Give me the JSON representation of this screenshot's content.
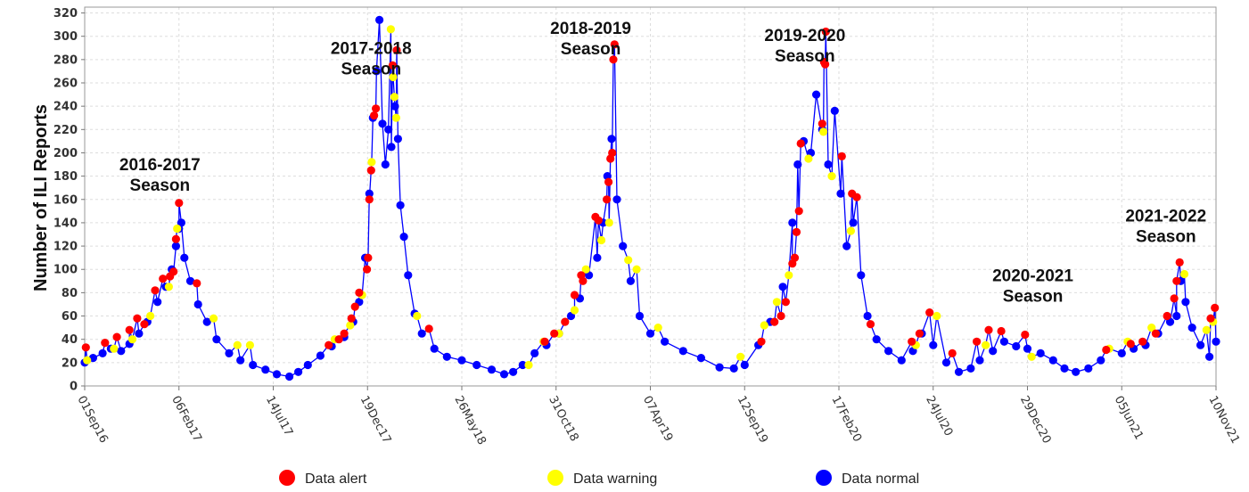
{
  "chart_data": {
    "type": "scatter",
    "title": "",
    "xlabel": "",
    "ylabel": "Number of ILI Reports",
    "ylim": [
      0,
      325
    ],
    "yticks": [
      0,
      20,
      40,
      60,
      80,
      100,
      120,
      140,
      160,
      180,
      200,
      220,
      240,
      260,
      280,
      300,
      320
    ],
    "xlim": [
      "2016-09-01",
      "2021-11-10"
    ],
    "xtick_labels": [
      "01Sep16",
      "06Feb17",
      "14Jul17",
      "19Dec17",
      "26May18",
      "31Oct18",
      "07Apr19",
      "12Sep19",
      "17Feb20",
      "24Jul20",
      "29Dec20",
      "05Jun21",
      "10Nov21"
    ],
    "xtick_dates": [
      "2016-09-01",
      "2017-02-06",
      "2017-07-14",
      "2017-12-19",
      "2018-05-26",
      "2018-10-31",
      "2019-04-07",
      "2019-09-12",
      "2020-02-17",
      "2020-07-24",
      "2020-12-29",
      "2021-06-05",
      "2021-11-10"
    ],
    "grid": true,
    "legend_position": "bottom",
    "legend": [
      {
        "label": "Data alert",
        "color": "#ff0000"
      },
      {
        "label": "Data warning",
        "color": "#ffff00"
      },
      {
        "label": "Data normal",
        "color": "#0000ff"
      }
    ],
    "annotations": [
      {
        "lines": [
          "2016-2017",
          "Season"
        ],
        "date": "2017-01-05",
        "y": 185
      },
      {
        "lines": [
          "2017-2018",
          "Season"
        ],
        "date": "2017-12-25",
        "y": 285
      },
      {
        "lines": [
          "2018-2019",
          "Season"
        ],
        "date": "2018-12-28",
        "y": 302
      },
      {
        "lines": [
          "2019-2020",
          "Season"
        ],
        "date": "2019-12-22",
        "y": 296
      },
      {
        "lines": [
          "2020-2021",
          "Season"
        ],
        "date": "2021-01-07",
        "y": 90
      },
      {
        "lines": [
          "2021-2022",
          "Season"
        ],
        "date": "2021-08-18",
        "y": 141
      }
    ],
    "series": [
      {
        "name": "Data normal",
        "color": "#0000ff",
        "points": [
          [
            "2016-09-01",
            20
          ],
          [
            "2016-09-15",
            24
          ],
          [
            "2016-10-01",
            28
          ],
          [
            "2016-10-15",
            32
          ],
          [
            "2016-11-01",
            30
          ],
          [
            "2016-11-15",
            36
          ],
          [
            "2016-12-01",
            45
          ],
          [
            "2016-12-15",
            55
          ],
          [
            "2017-01-01",
            72
          ],
          [
            "2017-01-15",
            85
          ],
          [
            "2017-01-25",
            100
          ],
          [
            "2017-02-01",
            120
          ],
          [
            "2017-02-06",
            135
          ],
          [
            "2017-02-10",
            140
          ],
          [
            "2017-02-15",
            110
          ],
          [
            "2017-02-25",
            90
          ],
          [
            "2017-03-10",
            70
          ],
          [
            "2017-03-25",
            55
          ],
          [
            "2017-04-10",
            40
          ],
          [
            "2017-05-01",
            28
          ],
          [
            "2017-05-20",
            22
          ],
          [
            "2017-06-10",
            18
          ],
          [
            "2017-07-01",
            14
          ],
          [
            "2017-07-20",
            10
          ],
          [
            "2017-08-10",
            8
          ],
          [
            "2017-08-25",
            12
          ],
          [
            "2017-09-10",
            18
          ],
          [
            "2017-10-01",
            26
          ],
          [
            "2017-10-20",
            34
          ],
          [
            "2017-11-10",
            42
          ],
          [
            "2017-11-25",
            55
          ],
          [
            "2017-12-05",
            72
          ],
          [
            "2017-12-15",
            110
          ],
          [
            "2017-12-22",
            165
          ],
          [
            "2017-12-28",
            230
          ],
          [
            "2018-01-03",
            270
          ],
          [
            "2018-01-08",
            314
          ],
          [
            "2018-01-13",
            225
          ],
          [
            "2018-01-18",
            190
          ],
          [
            "2018-01-23",
            220
          ],
          [
            "2018-01-28",
            205
          ],
          [
            "2018-02-03",
            240
          ],
          [
            "2018-02-08",
            212
          ],
          [
            "2018-02-12",
            155
          ],
          [
            "2018-02-18",
            128
          ],
          [
            "2018-02-25",
            95
          ],
          [
            "2018-03-08",
            62
          ],
          [
            "2018-03-20",
            45
          ],
          [
            "2018-04-10",
            32
          ],
          [
            "2018-05-01",
            25
          ],
          [
            "2018-05-26",
            22
          ],
          [
            "2018-06-20",
            18
          ],
          [
            "2018-07-15",
            14
          ],
          [
            "2018-08-05",
            10
          ],
          [
            "2018-08-20",
            12
          ],
          [
            "2018-09-05",
            18
          ],
          [
            "2018-09-25",
            28
          ],
          [
            "2018-10-15",
            35
          ],
          [
            "2018-11-05",
            45
          ],
          [
            "2018-11-25",
            60
          ],
          [
            "2018-12-10",
            75
          ],
          [
            "2018-12-25",
            95
          ],
          [
            "2019-01-08",
            110
          ],
          [
            "2019-01-18",
            140
          ],
          [
            "2019-01-25",
            180
          ],
          [
            "2019-02-01",
            212
          ],
          [
            "2019-02-10",
            160
          ],
          [
            "2019-02-20",
            120
          ],
          [
            "2019-03-05",
            90
          ],
          [
            "2019-03-20",
            60
          ],
          [
            "2019-04-07",
            45
          ],
          [
            "2019-05-01",
            38
          ],
          [
            "2019-06-01",
            30
          ],
          [
            "2019-07-01",
            24
          ],
          [
            "2019-08-01",
            16
          ],
          [
            "2019-08-25",
            15
          ],
          [
            "2019-09-12",
            18
          ],
          [
            "2019-10-05",
            35
          ],
          [
            "2019-10-25",
            55
          ],
          [
            "2019-11-15",
            85
          ],
          [
            "2019-12-01",
            140
          ],
          [
            "2019-12-10",
            190
          ],
          [
            "2019-12-20",
            210
          ],
          [
            "2020-01-01",
            200
          ],
          [
            "2020-01-10",
            250
          ],
          [
            "2020-01-20",
            220
          ],
          [
            "2020-01-30",
            190
          ],
          [
            "2020-02-10",
            236
          ],
          [
            "2020-02-20",
            165
          ],
          [
            "2020-03-01",
            120
          ],
          [
            "2020-03-12",
            140
          ],
          [
            "2020-03-25",
            95
          ],
          [
            "2020-04-05",
            60
          ],
          [
            "2020-04-20",
            40
          ],
          [
            "2020-05-10",
            30
          ],
          [
            "2020-06-01",
            22
          ],
          [
            "2020-06-20",
            30
          ],
          [
            "2020-07-05",
            45
          ],
          [
            "2020-07-24",
            35
          ],
          [
            "2020-08-15",
            20
          ],
          [
            "2020-09-05",
            12
          ],
          [
            "2020-09-25",
            15
          ],
          [
            "2020-10-10",
            22
          ],
          [
            "2020-11-01",
            30
          ],
          [
            "2020-11-20",
            38
          ],
          [
            "2020-12-10",
            34
          ],
          [
            "2020-12-29",
            32
          ],
          [
            "2021-01-20",
            28
          ],
          [
            "2021-02-10",
            22
          ],
          [
            "2021-03-01",
            15
          ],
          [
            "2021-03-20",
            12
          ],
          [
            "2021-04-10",
            15
          ],
          [
            "2021-05-01",
            22
          ],
          [
            "2021-06-05",
            28
          ],
          [
            "2021-06-25",
            32
          ],
          [
            "2021-07-15",
            35
          ],
          [
            "2021-08-05",
            45
          ],
          [
            "2021-08-25",
            55
          ],
          [
            "2021-09-05",
            60
          ],
          [
            "2021-09-12",
            90
          ],
          [
            "2021-09-20",
            72
          ],
          [
            "2021-10-01",
            50
          ],
          [
            "2021-10-15",
            35
          ],
          [
            "2021-10-30",
            25
          ],
          [
            "2021-11-10",
            38
          ]
        ]
      },
      {
        "name": "Data warning",
        "color": "#ffff00",
        "points": [
          [
            "2016-09-05",
            22
          ],
          [
            "2016-10-20",
            32
          ],
          [
            "2016-11-20",
            40
          ],
          [
            "2016-12-20",
            60
          ],
          [
            "2017-01-20",
            85
          ],
          [
            "2017-02-03",
            135
          ],
          [
            "2017-04-05",
            58
          ],
          [
            "2017-05-15",
            35
          ],
          [
            "2017-06-05",
            35
          ],
          [
            "2017-10-25",
            40
          ],
          [
            "2017-11-20",
            52
          ],
          [
            "2017-12-10",
            78
          ],
          [
            "2017-12-26",
            192
          ],
          [
            "2018-01-27",
            306
          ],
          [
            "2018-01-31",
            265
          ],
          [
            "2018-02-02",
            248
          ],
          [
            "2018-02-05",
            230
          ],
          [
            "2018-03-12",
            60
          ],
          [
            "2018-09-15",
            18
          ],
          [
            "2018-10-10",
            38
          ],
          [
            "2018-11-05",
            45
          ],
          [
            "2018-12-01",
            65
          ],
          [
            "2018-12-20",
            100
          ],
          [
            "2019-01-15",
            125
          ],
          [
            "2019-01-28",
            140
          ],
          [
            "2019-03-01",
            108
          ],
          [
            "2019-03-15",
            100
          ],
          [
            "2019-04-20",
            50
          ],
          [
            "2019-09-05",
            25
          ],
          [
            "2019-10-15",
            52
          ],
          [
            "2019-11-05",
            72
          ],
          [
            "2019-11-25",
            95
          ],
          [
            "2019-12-28",
            195
          ],
          [
            "2020-01-22",
            218
          ],
          [
            "2020-02-05",
            180
          ],
          [
            "2020-03-08",
            133
          ],
          [
            "2020-06-25",
            35
          ],
          [
            "2020-07-30",
            60
          ],
          [
            "2020-10-20",
            35
          ],
          [
            "2021-01-05",
            25
          ],
          [
            "2021-05-15",
            32
          ],
          [
            "2021-06-15",
            38
          ],
          [
            "2021-07-25",
            50
          ],
          [
            "2021-09-18",
            96
          ],
          [
            "2021-10-25",
            48
          ],
          [
            "2021-11-05",
            55
          ]
        ]
      },
      {
        "name": "Data alert",
        "color": "#ff0000",
        "points": [
          [
            "2016-09-03",
            33
          ],
          [
            "2016-10-05",
            37
          ],
          [
            "2016-10-25",
            42
          ],
          [
            "2016-11-15",
            48
          ],
          [
            "2016-11-28",
            58
          ],
          [
            "2016-12-10",
            53
          ],
          [
            "2016-12-28",
            82
          ],
          [
            "2017-01-10",
            92
          ],
          [
            "2017-01-22",
            94
          ],
          [
            "2017-01-28",
            98
          ],
          [
            "2017-02-01",
            126
          ],
          [
            "2017-02-06",
            157
          ],
          [
            "2017-03-08",
            88
          ],
          [
            "2017-10-15",
            35
          ],
          [
            "2017-11-01",
            40
          ],
          [
            "2017-11-10",
            45
          ],
          [
            "2017-11-22",
            58
          ],
          [
            "2017-11-28",
            68
          ],
          [
            "2017-12-05",
            80
          ],
          [
            "2017-12-18",
            100
          ],
          [
            "2017-12-20",
            110
          ],
          [
            "2017-12-22",
            160
          ],
          [
            "2017-12-25",
            185
          ],
          [
            "2017-12-30",
            232
          ],
          [
            "2018-01-02",
            238
          ],
          [
            "2018-01-30",
            275
          ],
          [
            "2018-02-06",
            288
          ],
          [
            "2018-04-01",
            49
          ],
          [
            "2018-10-12",
            38
          ],
          [
            "2018-10-28",
            45
          ],
          [
            "2018-11-15",
            55
          ],
          [
            "2018-12-01",
            78
          ],
          [
            "2018-12-12",
            95
          ],
          [
            "2018-12-15",
            90
          ],
          [
            "2019-01-05",
            145
          ],
          [
            "2019-01-10",
            142
          ],
          [
            "2019-01-24",
            160
          ],
          [
            "2019-01-27",
            175
          ],
          [
            "2019-01-30",
            195
          ],
          [
            "2019-02-02",
            200
          ],
          [
            "2019-02-04",
            280
          ],
          [
            "2019-02-06",
            293
          ],
          [
            "2019-10-10",
            38
          ],
          [
            "2019-11-01",
            55
          ],
          [
            "2019-11-12",
            60
          ],
          [
            "2019-11-20",
            72
          ],
          [
            "2019-12-01",
            105
          ],
          [
            "2019-12-05",
            110
          ],
          [
            "2019-12-08",
            132
          ],
          [
            "2019-12-12",
            150
          ],
          [
            "2019-12-15",
            208
          ],
          [
            "2020-01-20",
            225
          ],
          [
            "2020-01-23",
            278
          ],
          [
            "2020-01-25",
            276
          ],
          [
            "2020-01-26",
            304
          ],
          [
            "2020-02-22",
            197
          ],
          [
            "2020-03-10",
            165
          ],
          [
            "2020-03-18",
            162
          ],
          [
            "2020-04-10",
            53
          ],
          [
            "2020-06-18",
            38
          ],
          [
            "2020-07-01",
            45
          ],
          [
            "2020-07-18",
            63
          ],
          [
            "2020-08-25",
            28
          ],
          [
            "2020-10-05",
            38
          ],
          [
            "2020-10-25",
            48
          ],
          [
            "2020-11-15",
            47
          ],
          [
            "2020-12-25",
            44
          ],
          [
            "2021-05-10",
            31
          ],
          [
            "2021-06-20",
            36
          ],
          [
            "2021-07-10",
            38
          ],
          [
            "2021-08-01",
            45
          ],
          [
            "2021-08-20",
            60
          ],
          [
            "2021-09-01",
            75
          ],
          [
            "2021-09-05",
            90
          ],
          [
            "2021-09-10",
            106
          ],
          [
            "2021-11-01",
            58
          ],
          [
            "2021-11-08",
            67
          ]
        ]
      }
    ]
  }
}
